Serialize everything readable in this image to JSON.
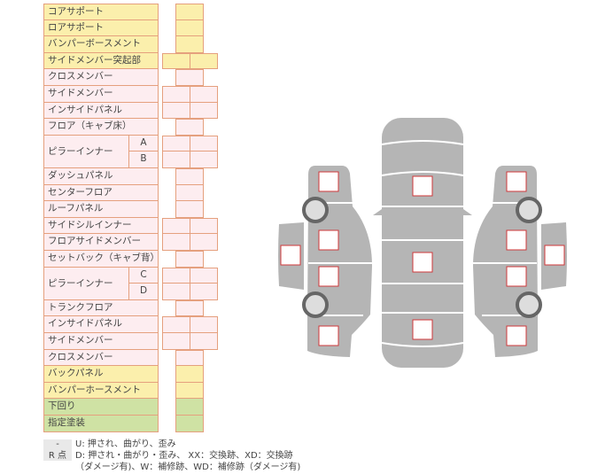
{
  "rows": [
    {
      "label": "コアサポート",
      "color": "yellow",
      "cells": "single"
    },
    {
      "label": "ロアサポート",
      "color": "yellow",
      "cells": "single"
    },
    {
      "label": "バンパーボースメント",
      "color": "yellow",
      "cells": "single"
    },
    {
      "label": "サイドメンバー突起部",
      "color": "yellow",
      "cells": "double"
    },
    {
      "label": "クロスメンバー",
      "color": "pink",
      "cells": "single"
    },
    {
      "label": "サイドメンバー",
      "color": "pink",
      "cells": "double"
    },
    {
      "label": "インサイドパネル",
      "color": "pink",
      "cells": "double"
    },
    {
      "label": "フロア（キャブ床）",
      "color": "pink",
      "cells": "single"
    },
    {
      "label": "ピラーインナー",
      "sub": "A",
      "color": "pink",
      "cells": "double",
      "group_start": true
    },
    {
      "label": "",
      "sub": "B",
      "color": "pink",
      "cells": "double",
      "group_end": true
    },
    {
      "label": "ダッシュパネル",
      "color": "pink",
      "cells": "single"
    },
    {
      "label": "センターフロア",
      "color": "pink",
      "cells": "single"
    },
    {
      "label": "ルーフパネル",
      "color": "pink",
      "cells": "single"
    },
    {
      "label": "サイドシルインナー",
      "color": "pink",
      "cells": "double"
    },
    {
      "label": "フロアサイドメンバー",
      "color": "pink",
      "cells": "double"
    },
    {
      "label": "セットバック（キャブ背）",
      "color": "pink",
      "cells": "single"
    },
    {
      "label": "ピラーインナー",
      "sub": "C",
      "color": "pink",
      "cells": "double",
      "group_start": true
    },
    {
      "label": "",
      "sub": "D",
      "color": "pink",
      "cells": "double",
      "group_end": true
    },
    {
      "label": "トランクフロア",
      "color": "pink",
      "cells": "single"
    },
    {
      "label": "インサイドパネル",
      "color": "pink",
      "cells": "double"
    },
    {
      "label": "サイドメンバー",
      "color": "pink",
      "cells": "double"
    },
    {
      "label": "クロスメンバー",
      "color": "pink",
      "cells": "single"
    },
    {
      "label": "バックパネル",
      "color": "yellow",
      "cells": "single"
    },
    {
      "label": "バンパーホースメント",
      "color": "yellow",
      "cells": "single"
    },
    {
      "label": "下回り",
      "color": "green",
      "cells": "single"
    },
    {
      "label": "指定塗装",
      "color": "green",
      "cells": "single"
    }
  ],
  "legend": [
    {
      "key": "-",
      "text": "U: 押され、曲がり、歪み"
    },
    {
      "key": "R 点",
      "text": "D: 押され・曲がり・歪み、 XX：交換跡、XD：交換跡"
    },
    {
      "key": "",
      "text": "（ダメージ有)、W：補修跡、WD：補修跡（ダメージ有)"
    }
  ],
  "colors": {
    "yellow": "#fbefac",
    "pink": "#fdedf0",
    "green": "#cfe2a4",
    "border": "#e5a07e",
    "car": "#b5b5b5",
    "marker": "#d0383a"
  }
}
